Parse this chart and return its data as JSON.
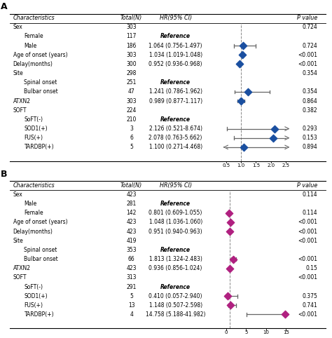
{
  "panel_A": {
    "title": "A",
    "rows": [
      {
        "label": "Sex",
        "total": "303",
        "ci_text": "",
        "hr": null,
        "lo": null,
        "hi": null,
        "pval": "0.724",
        "indent": false
      },
      {
        "label": "Female",
        "total": "117",
        "ci_text": "Reference",
        "hr": null,
        "lo": null,
        "hi": null,
        "pval": "",
        "indent": true
      },
      {
        "label": "Male",
        "total": "186",
        "ci_text": "1.064 (0.756-1.497)",
        "hr": 1.064,
        "lo": 0.756,
        "hi": 1.497,
        "pval": "0.724",
        "indent": true
      },
      {
        "label": "Age of onset (years)",
        "total": "303",
        "ci_text": "1.034 (1.019-1.048)",
        "hr": 1.034,
        "lo": 1.019,
        "hi": 1.048,
        "pval": "<0.001",
        "indent": false
      },
      {
        "label": "Delay(months)",
        "total": "300",
        "ci_text": "0.952 (0.936-0.968)",
        "hr": 0.952,
        "lo": 0.936,
        "hi": 0.968,
        "pval": "<0.001",
        "indent": false
      },
      {
        "label": "Site",
        "total": "298",
        "ci_text": "",
        "hr": null,
        "lo": null,
        "hi": null,
        "pval": "0.354",
        "indent": false
      },
      {
        "label": "Spinal onset",
        "total": "251",
        "ci_text": "Reference",
        "hr": null,
        "lo": null,
        "hi": null,
        "pval": "",
        "indent": true
      },
      {
        "label": "Bulbar onset",
        "total": "47",
        "ci_text": "1.241 (0.786-1.962)",
        "hr": 1.241,
        "lo": 0.786,
        "hi": 1.962,
        "pval": "0.354",
        "indent": true
      },
      {
        "label": "ATXN2",
        "total": "303",
        "ci_text": "0.989 (0.877-1.117)",
        "hr": 0.989,
        "lo": 0.877,
        "hi": 1.117,
        "pval": "0.864",
        "indent": false
      },
      {
        "label": "SOFT",
        "total": "224",
        "ci_text": "",
        "hr": null,
        "lo": null,
        "hi": null,
        "pval": "0.382",
        "indent": false
      },
      {
        "label": "SoFT(-)",
        "total": "210",
        "ci_text": "Reference",
        "hr": null,
        "lo": null,
        "hi": null,
        "pval": "",
        "indent": true
      },
      {
        "label": "SOD1(+)",
        "total": "3",
        "ci_text": "2.126 (0.521-8.674)",
        "hr": 2.126,
        "lo": 0.521,
        "hi": 8.674,
        "pval": "0.293",
        "indent": true
      },
      {
        "label": "FUS(+)",
        "total": "6",
        "ci_text": "2.078 (0.763-5.662)",
        "hr": 2.078,
        "lo": 0.763,
        "hi": 5.662,
        "pval": "0.153",
        "indent": true
      },
      {
        "label": "TARDBP(+)",
        "total": "5",
        "ci_text": "1.100 (0.271-4.468)",
        "hr": 1.1,
        "lo": 0.271,
        "hi": 4.468,
        "pval": "0.894",
        "indent": true
      }
    ],
    "xmin": 0.5,
    "xmax": 2.5,
    "xticks": [
      0.5,
      1.0,
      1.5,
      2.0,
      2.5
    ],
    "xticklabels": [
      "0.5",
      "1.0",
      "1.5",
      "2.0",
      "2.5"
    ],
    "ref_line": 1.0,
    "dot_color": "#1a4fa0",
    "line_color": "#666666"
  },
  "panel_B": {
    "title": "B",
    "rows": [
      {
        "label": "Sex",
        "total": "423",
        "ci_text": "",
        "hr": null,
        "lo": null,
        "hi": null,
        "pval": "0.114",
        "indent": false
      },
      {
        "label": "Male",
        "total": "281",
        "ci_text": "Reference",
        "hr": null,
        "lo": null,
        "hi": null,
        "pval": "",
        "indent": true
      },
      {
        "label": "Female",
        "total": "142",
        "ci_text": "0.801 (0.609-1.055)",
        "hr": 0.801,
        "lo": 0.609,
        "hi": 1.055,
        "pval": "0.114",
        "indent": true
      },
      {
        "label": "Age of onset (years)",
        "total": "423",
        "ci_text": "1.048 (1.036-1.060)",
        "hr": 1.048,
        "lo": 1.036,
        "hi": 1.06,
        "pval": "<0.001",
        "indent": false
      },
      {
        "label": "Delay(months)",
        "total": "423",
        "ci_text": "0.951 (0.940-0.963)",
        "hr": 0.951,
        "lo": 0.94,
        "hi": 0.963,
        "pval": "<0.001",
        "indent": false
      },
      {
        "label": "Site",
        "total": "419",
        "ci_text": "",
        "hr": null,
        "lo": null,
        "hi": null,
        "pval": "<0.001",
        "indent": false
      },
      {
        "label": "Spinal onset",
        "total": "353",
        "ci_text": "Reference",
        "hr": null,
        "lo": null,
        "hi": null,
        "pval": "",
        "indent": true
      },
      {
        "label": "Bulbar onset",
        "total": "66",
        "ci_text": "1.813 (1.324-2.483)",
        "hr": 1.813,
        "lo": 1.324,
        "hi": 2.483,
        "pval": "<0.001",
        "indent": true
      },
      {
        "label": "ATXN2",
        "total": "423",
        "ci_text": "0.936 (0.856-1.024)",
        "hr": 0.936,
        "lo": 0.856,
        "hi": 1.024,
        "pval": "0.15",
        "indent": false
      },
      {
        "label": "SOFT",
        "total": "313",
        "ci_text": "",
        "hr": null,
        "lo": null,
        "hi": null,
        "pval": "<0.001",
        "indent": false
      },
      {
        "label": "SoFT(-)",
        "total": "291",
        "ci_text": "Reference",
        "hr": null,
        "lo": null,
        "hi": null,
        "pval": "",
        "indent": true
      },
      {
        "label": "SOD1(+)",
        "total": "5",
        "ci_text": "0.410 (0.057-2.940)",
        "hr": 0.41,
        "lo": 0.057,
        "hi": 2.94,
        "pval": "0.375",
        "indent": true
      },
      {
        "label": "FUS(+)",
        "total": "13",
        "ci_text": "1.148 (0.507-2.598)",
        "hr": 1.148,
        "lo": 0.507,
        "hi": 2.598,
        "pval": "0.741",
        "indent": true
      },
      {
        "label": "TARDBP(+)",
        "total": "4",
        "ci_text": "14.758 (5.188-41.982)",
        "hr": 14.758,
        "lo": 5.188,
        "hi": 41.982,
        "pval": "<0.001",
        "indent": true
      }
    ],
    "xmin": 0,
    "xmax": 15,
    "xticks": [
      0,
      5,
      10,
      15
    ],
    "xticklabels": [
      "0",
      "5",
      "10",
      "15"
    ],
    "ref_line": 1.0,
    "dot_color": "#b02080",
    "line_color": "#666666"
  },
  "fig_width": 4.74,
  "fig_height": 4.82,
  "dpi": 100,
  "bg_color": "#ffffff",
  "font_size": 5.5,
  "header_font_size": 5.8
}
